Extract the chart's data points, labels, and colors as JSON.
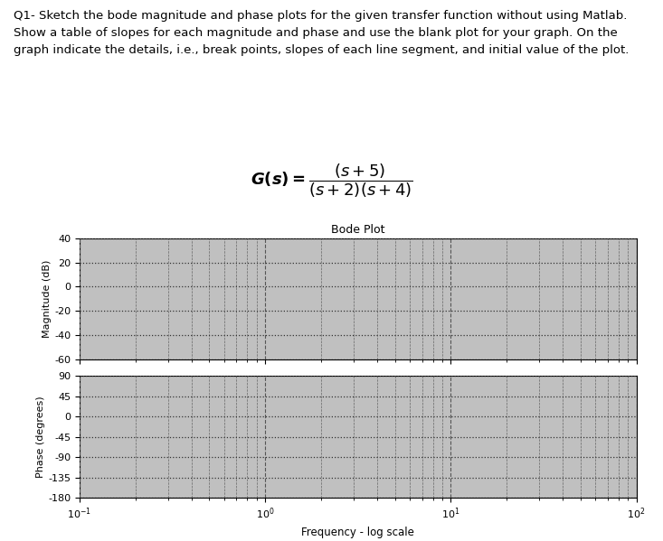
{
  "title_text": "Q1- Sketch the bode magnitude and phase plots for the given transfer function without using Matlab.\nShow a table of slopes for each magnitude and phase and use the blank plot for your graph. On the\ngraph indicate the details, i.e., break points, slopes of each line segment, and initial value of the plot.",
  "bode_title": "Bode Plot",
  "xlabel": "Frequency - log scale",
  "ylabel_mag": "Magnitude (dB)",
  "ylabel_phase": "Phase (degrees)",
  "freq_min": 0.1,
  "freq_max": 100,
  "mag_yticks": [
    40,
    20,
    0,
    -20,
    -40,
    -60
  ],
  "mag_ylim": [
    -60,
    40
  ],
  "phase_yticks": [
    90,
    45,
    0,
    -45,
    -90,
    -135,
    -180
  ],
  "phase_ylim": [
    -180,
    90
  ],
  "background_color": "#c0c0c0",
  "text_color": "#000000",
  "figure_bg": "#ffffff"
}
